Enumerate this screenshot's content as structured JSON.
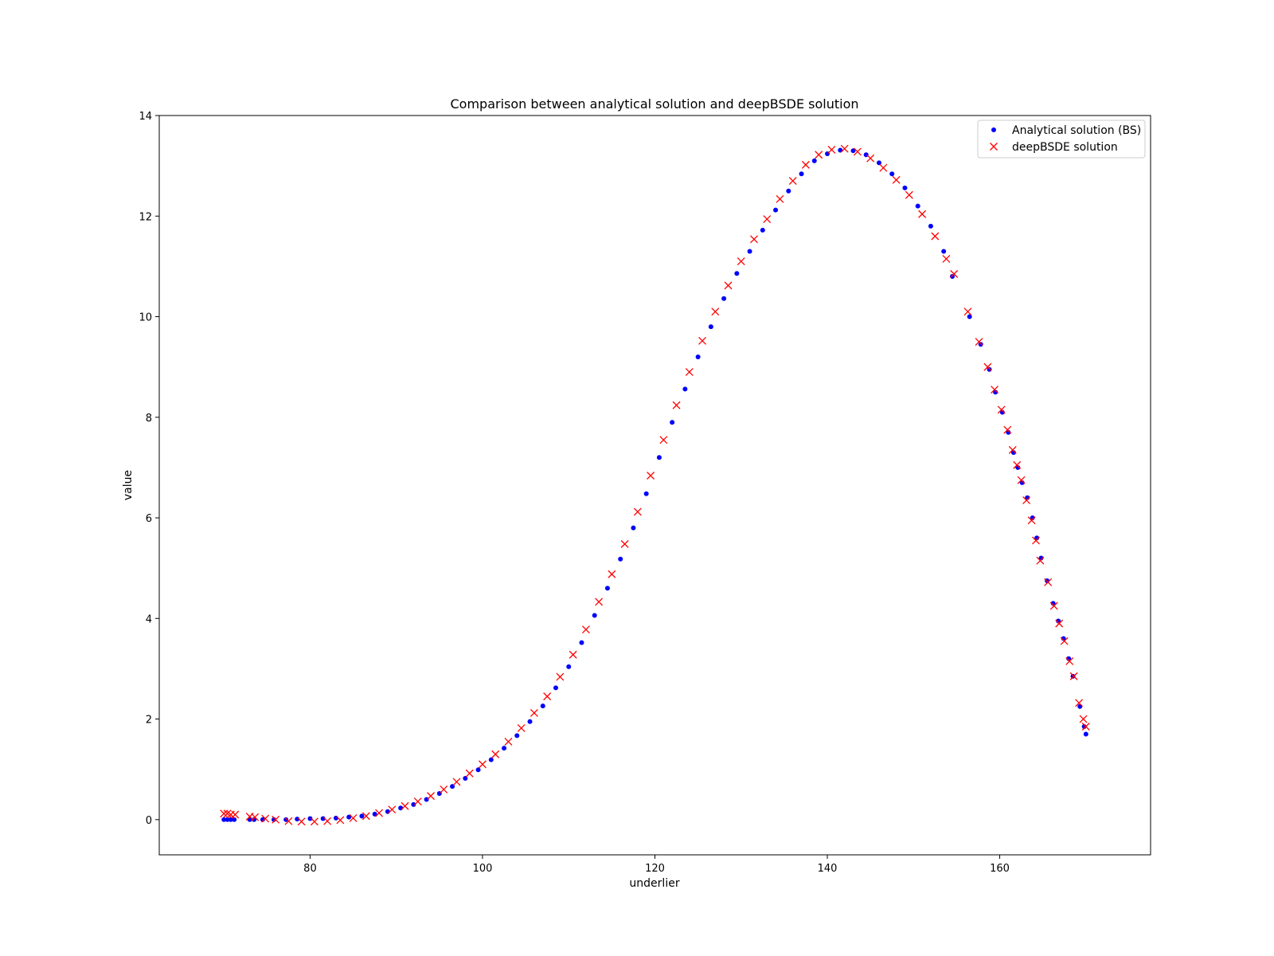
{
  "chart_data": {
    "type": "scatter",
    "title": "Comparison between analytical solution and deepBSDE solution",
    "xlabel": "underlier",
    "ylabel": "value",
    "xlim": [
      62.5,
      177.5
    ],
    "ylim": [
      -0.7,
      14
    ],
    "x_ticks": [
      80,
      100,
      120,
      140,
      160
    ],
    "y_ticks": [
      0,
      2,
      4,
      6,
      8,
      10,
      12,
      14
    ],
    "grid": false,
    "legend_position": "top-right",
    "colors": {
      "analytical": "#0000ff",
      "deepbsde": "#ff0000"
    },
    "series": [
      {
        "name": "Analytical solution (BS)",
        "marker": "dot",
        "color": "#0000ff",
        "points": [
          [
            70.0,
            0.0
          ],
          [
            70.4,
            0.0
          ],
          [
            70.8,
            0.0
          ],
          [
            71.2,
            0.0
          ],
          [
            73.0,
            0.0
          ],
          [
            73.5,
            0.0
          ],
          [
            74.5,
            0.0
          ],
          [
            75.8,
            0.0
          ],
          [
            77.2,
            0.0
          ],
          [
            78.5,
            0.01
          ],
          [
            80.0,
            0.02
          ],
          [
            81.5,
            0.02
          ],
          [
            83.0,
            0.03
          ],
          [
            84.5,
            0.05
          ],
          [
            86.0,
            0.07
          ],
          [
            87.5,
            0.11
          ],
          [
            89.0,
            0.16
          ],
          [
            90.5,
            0.23
          ],
          [
            92.0,
            0.3
          ],
          [
            93.5,
            0.4
          ],
          [
            95.0,
            0.52
          ],
          [
            96.5,
            0.66
          ],
          [
            98.0,
            0.82
          ],
          [
            99.5,
            0.99
          ],
          [
            101.0,
            1.19
          ],
          [
            102.5,
            1.42
          ],
          [
            104.0,
            1.67
          ],
          [
            105.5,
            1.95
          ],
          [
            107.0,
            2.26
          ],
          [
            108.5,
            2.62
          ],
          [
            110.0,
            3.04
          ],
          [
            111.5,
            3.52
          ],
          [
            113.0,
            4.06
          ],
          [
            114.5,
            4.6
          ],
          [
            116.0,
            5.18
          ],
          [
            117.5,
            5.8
          ],
          [
            119.0,
            6.48
          ],
          [
            120.5,
            7.2
          ],
          [
            122.0,
            7.9
          ],
          [
            123.5,
            8.56
          ],
          [
            125.0,
            9.2
          ],
          [
            126.5,
            9.8
          ],
          [
            128.0,
            10.36
          ],
          [
            129.5,
            10.86
          ],
          [
            131.0,
            11.3
          ],
          [
            132.5,
            11.72
          ],
          [
            134.0,
            12.12
          ],
          [
            135.5,
            12.5
          ],
          [
            137.0,
            12.84
          ],
          [
            138.5,
            13.1
          ],
          [
            140.0,
            13.24
          ],
          [
            141.5,
            13.31
          ],
          [
            143.0,
            13.3
          ],
          [
            144.5,
            13.22
          ],
          [
            146.0,
            13.06
          ],
          [
            147.5,
            12.84
          ],
          [
            149.0,
            12.56
          ],
          [
            150.5,
            12.2
          ],
          [
            152.0,
            11.8
          ],
          [
            153.5,
            11.3
          ],
          [
            154.5,
            10.8
          ],
          [
            156.5,
            10.0
          ],
          [
            157.8,
            9.45
          ],
          [
            158.8,
            8.95
          ],
          [
            159.5,
            8.5
          ],
          [
            160.3,
            8.1
          ],
          [
            161.0,
            7.7
          ],
          [
            161.6,
            7.3
          ],
          [
            162.1,
            7.0
          ],
          [
            162.6,
            6.7
          ],
          [
            163.2,
            6.4
          ],
          [
            163.8,
            6.0
          ],
          [
            164.3,
            5.6
          ],
          [
            164.8,
            5.2
          ],
          [
            165.5,
            4.75
          ],
          [
            166.2,
            4.3
          ],
          [
            166.8,
            3.95
          ],
          [
            167.4,
            3.6
          ],
          [
            168.0,
            3.2
          ],
          [
            168.5,
            2.85
          ],
          [
            169.3,
            2.25
          ],
          [
            169.8,
            1.85
          ],
          [
            170.0,
            1.7
          ]
        ]
      },
      {
        "name": "deepBSDE solution",
        "marker": "x",
        "color": "#ff0000",
        "points": [
          [
            70.0,
            0.12
          ],
          [
            70.4,
            0.12
          ],
          [
            70.8,
            0.1
          ],
          [
            71.3,
            0.1
          ],
          [
            73.0,
            0.06
          ],
          [
            73.6,
            0.05
          ],
          [
            74.8,
            0.02
          ],
          [
            76.0,
            0.0
          ],
          [
            77.5,
            -0.03
          ],
          [
            79.0,
            -0.04
          ],
          [
            80.5,
            -0.04
          ],
          [
            82.0,
            -0.03
          ],
          [
            83.5,
            -0.01
          ],
          [
            85.0,
            0.03
          ],
          [
            86.5,
            0.07
          ],
          [
            88.0,
            0.13
          ],
          [
            89.5,
            0.2
          ],
          [
            91.0,
            0.27
          ],
          [
            92.5,
            0.36
          ],
          [
            94.0,
            0.47
          ],
          [
            95.5,
            0.6
          ],
          [
            97.0,
            0.75
          ],
          [
            98.5,
            0.92
          ],
          [
            100.0,
            1.1
          ],
          [
            101.5,
            1.3
          ],
          [
            103.0,
            1.55
          ],
          [
            104.5,
            1.82
          ],
          [
            106.0,
            2.12
          ],
          [
            107.5,
            2.45
          ],
          [
            109.0,
            2.84
          ],
          [
            110.5,
            3.28
          ],
          [
            112.0,
            3.78
          ],
          [
            113.5,
            4.33
          ],
          [
            115.0,
            4.88
          ],
          [
            116.5,
            5.48
          ],
          [
            118.0,
            6.12
          ],
          [
            119.5,
            6.84
          ],
          [
            121.0,
            7.55
          ],
          [
            122.5,
            8.24
          ],
          [
            124.0,
            8.9
          ],
          [
            125.5,
            9.52
          ],
          [
            127.0,
            10.1
          ],
          [
            128.5,
            10.62
          ],
          [
            130.0,
            11.1
          ],
          [
            131.5,
            11.54
          ],
          [
            133.0,
            11.94
          ],
          [
            134.5,
            12.34
          ],
          [
            136.0,
            12.7
          ],
          [
            137.5,
            13.02
          ],
          [
            139.0,
            13.22
          ],
          [
            140.5,
            13.32
          ],
          [
            142.0,
            13.34
          ],
          [
            143.5,
            13.28
          ],
          [
            145.0,
            13.15
          ],
          [
            146.5,
            12.96
          ],
          [
            148.0,
            12.72
          ],
          [
            149.5,
            12.42
          ],
          [
            151.0,
            12.04
          ],
          [
            152.5,
            11.6
          ],
          [
            153.8,
            11.15
          ],
          [
            154.7,
            10.85
          ],
          [
            156.3,
            10.1
          ],
          [
            157.6,
            9.5
          ],
          [
            158.6,
            9.0
          ],
          [
            159.4,
            8.55
          ],
          [
            160.2,
            8.15
          ],
          [
            160.9,
            7.75
          ],
          [
            161.5,
            7.35
          ],
          [
            162.0,
            7.05
          ],
          [
            162.5,
            6.75
          ],
          [
            163.1,
            6.35
          ],
          [
            163.7,
            5.95
          ],
          [
            164.2,
            5.55
          ],
          [
            164.7,
            5.15
          ],
          [
            165.6,
            4.72
          ],
          [
            166.3,
            4.25
          ],
          [
            166.9,
            3.9
          ],
          [
            167.5,
            3.55
          ],
          [
            168.1,
            3.15
          ],
          [
            168.6,
            2.85
          ],
          [
            169.2,
            2.32
          ],
          [
            169.7,
            2.0
          ],
          [
            170.0,
            1.85
          ]
        ]
      }
    ]
  }
}
